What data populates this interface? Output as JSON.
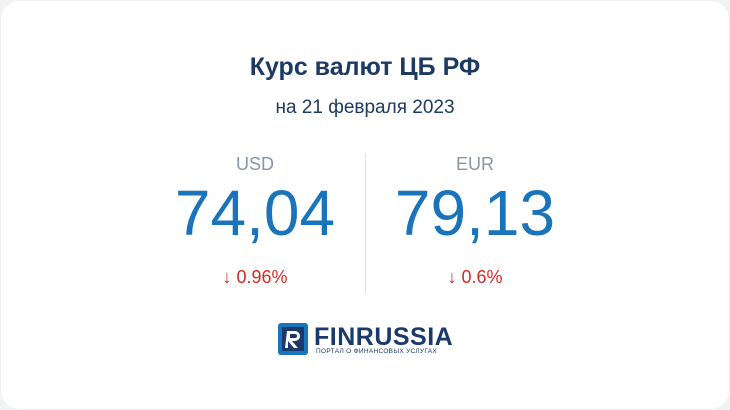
{
  "header": {
    "title": "Курс валют ЦБ РФ",
    "subtitle": "на 21 февраля 2023"
  },
  "rates": [
    {
      "code": "USD",
      "value": "74,04",
      "change": "↓ 0.96%"
    },
    {
      "code": "EUR",
      "value": "79,13",
      "change": "↓ 0.6%"
    }
  ],
  "logo": {
    "name": "FINRUSSIA",
    "tagline": "ПОРТАЛ О ФИНАНСОВЫХ УСЛУГАХ"
  }
}
